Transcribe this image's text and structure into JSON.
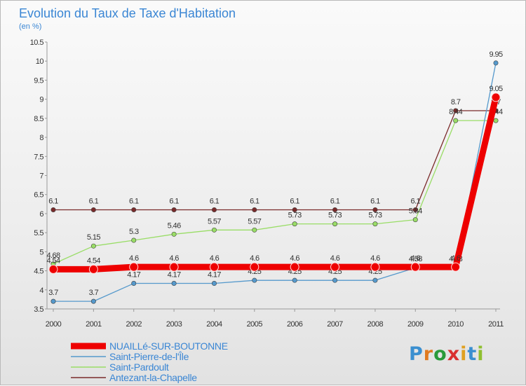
{
  "chart_data": {
    "type": "line",
    "title": "Evolution du Taux de Taxe d'Habitation",
    "subtitle": "(en %)",
    "x": [
      "2000",
      "2001",
      "2002",
      "2003",
      "2004",
      "2005",
      "2006",
      "2007",
      "2008",
      "2009",
      "2010",
      "2011"
    ],
    "y_ticks": [
      "3.5",
      "4",
      "4.5",
      "5",
      "5.5",
      "6",
      "6.5",
      "7",
      "7.5",
      "8",
      "8.5",
      "9",
      "9.5",
      "10",
      "10.5"
    ],
    "ylim": [
      3.5,
      10.5
    ],
    "grid": false,
    "legend_position": "bottom-left",
    "series": [
      {
        "name": "Antezant-la-Chapelle",
        "color": "#7a2a2a",
        "values": [
          6.1,
          6.1,
          6.1,
          6.1,
          6.1,
          6.1,
          6.1,
          6.1,
          6.1,
          6.1,
          8.7,
          8.7
        ],
        "labels": [
          "6.1",
          "6.1",
          "6.1",
          "6.1",
          "6.1",
          "6.1",
          "6.1",
          "6.1",
          "6.1",
          "6.1",
          "8.7",
          "8.7"
        ]
      },
      {
        "name": "Saint-Pardoult",
        "color": "#99dd66",
        "values": [
          4.68,
          5.15,
          5.3,
          5.46,
          5.57,
          5.57,
          5.73,
          5.73,
          5.73,
          5.84,
          8.44,
          8.44
        ],
        "labels": [
          "4.68",
          "5.15",
          "5.3",
          "5.46",
          "5.57",
          "5.57",
          "5.73",
          "5.73",
          "5.73",
          "5.84",
          "8.44",
          "8.44"
        ]
      },
      {
        "name": "Saint-Pierre-de-l'Île",
        "color": "#5599cc",
        "values": [
          3.7,
          3.7,
          4.17,
          4.17,
          4.17,
          4.25,
          4.25,
          4.25,
          4.25,
          4.58,
          4.58,
          9.95
        ],
        "labels": [
          "3.7",
          "3.7",
          "4.17",
          "4.17",
          "4.17",
          "4.25",
          "4.25",
          "4.25",
          "4.25",
          "4.58",
          "4.58",
          "9.95"
        ]
      },
      {
        "name": "NUAILLé-SUR-BOUTONNE",
        "color": "#ee0000",
        "values": [
          4.54,
          4.54,
          4.6,
          4.6,
          4.6,
          4.6,
          4.6,
          4.6,
          4.6,
          4.6,
          4.6,
          9.05
        ],
        "labels": [
          "4.54",
          "4.54",
          "4.6",
          "4.6",
          "4.6",
          "4.6",
          "4.6",
          "4.6",
          "4.6",
          "4.6",
          "4.6",
          "9.05"
        ]
      }
    ],
    "legend_order": [
      "NUAILLé-SUR-BOUTONNE",
      "Saint-Pierre-de-l'Île",
      "Saint-Pardoult",
      "Antezant-la-Chapelle"
    ]
  },
  "brand": {
    "letters": [
      "P",
      "r",
      "o",
      "x",
      "i",
      "t",
      "i"
    ],
    "colors": [
      "#3a8fd0",
      "#e07a20",
      "#2a9a3a",
      "#d93030",
      "#e0a020",
      "#3a8fd0",
      "#8fbf30"
    ]
  }
}
